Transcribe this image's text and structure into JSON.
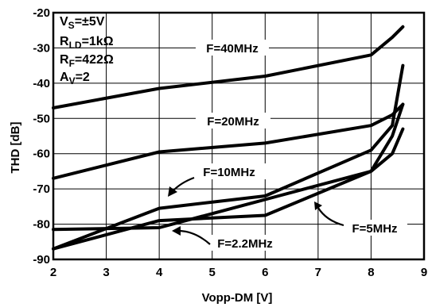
{
  "chart_data": {
    "type": "line",
    "xlabel": "Vopp-DM [V]",
    "ylabel": "THD [dB]",
    "xlim": [
      2,
      9
    ],
    "ylim": [
      -90,
      -20
    ],
    "x_ticks": [
      2,
      3,
      4,
      5,
      6,
      7,
      8,
      9
    ],
    "y_ticks": [
      -90,
      -80,
      -70,
      -60,
      -50,
      -40,
      -30,
      -20
    ],
    "grid": true,
    "conditions": [
      {
        "main": "V",
        "sub": "S",
        "rest": "=±5V"
      },
      {
        "main": "R",
        "sub": "LD",
        "rest": "=1kΩ"
      },
      {
        "main": "R",
        "sub": "F",
        "rest": "=422Ω"
      },
      {
        "main": "A",
        "sub": "V",
        "rest": "=2"
      }
    ],
    "series": [
      {
        "name": "F=40MHz",
        "x": [
          2,
          4,
          6,
          8,
          8.4,
          8.6
        ],
        "y": [
          -47,
          -41.5,
          -38,
          -32,
          -27,
          -24
        ]
      },
      {
        "name": "F=20MHz",
        "x": [
          2,
          4,
          6,
          8,
          8.4,
          8.6
        ],
        "y": [
          -67,
          -59.5,
          -57,
          -52,
          -49,
          -46
        ]
      },
      {
        "name": "F=10MHz",
        "x": [
          2,
          4,
          6,
          8,
          8.4,
          8.6
        ],
        "y": [
          -87,
          -75.5,
          -72,
          -59,
          -52,
          -35
        ]
      },
      {
        "name": "F=5MHz",
        "x": [
          2,
          4,
          6,
          8,
          8.4,
          8.6
        ],
        "y": [
          -87,
          -79,
          -77.5,
          -65,
          -60,
          -53
        ]
      },
      {
        "name": "F=2.2MHz",
        "x": [
          2,
          4,
          6,
          8,
          8.4,
          8.6
        ],
        "y": [
          -81.5,
          -81,
          -73,
          -65,
          -55,
          -46
        ]
      }
    ]
  }
}
